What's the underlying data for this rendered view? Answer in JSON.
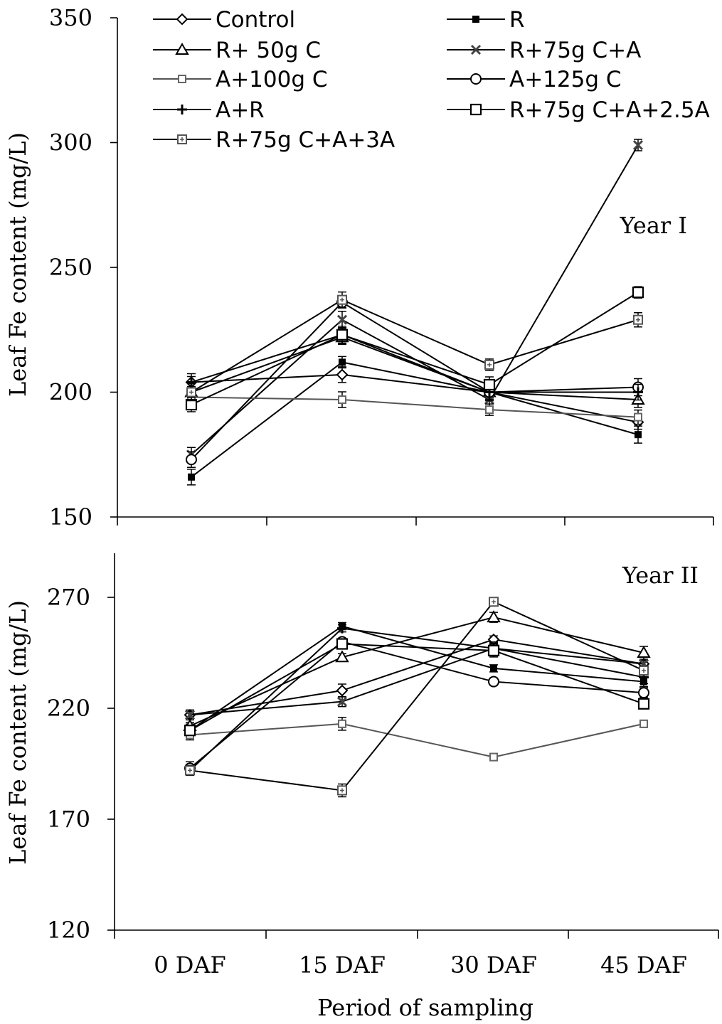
{
  "chart_data": [
    {
      "type": "line",
      "panel_label": "Year I",
      "ylabel": "Leaf Fe content (mg/L)",
      "xlabel": "",
      "categories": [
        "0 DAF",
        "15 DAF",
        "30 DAF",
        "45 DAF"
      ],
      "ylim": [
        150,
        350
      ],
      "yticks": [
        150,
        200,
        250,
        300,
        350
      ],
      "series": [
        {
          "name": "Control",
          "marker": "diamond-open",
          "values": [
            204,
            207,
            200,
            188
          ]
        },
        {
          "name": "R",
          "marker": "square-filled-small",
          "values": [
            166,
            212,
            200,
            183
          ]
        },
        {
          "name": "R+ 50g C",
          "marker": "triangle-open",
          "values": [
            200,
            222,
            200,
            197
          ]
        },
        {
          "name": "R+75g C+A",
          "marker": "x-small",
          "values": [
            175,
            229,
            197,
            299
          ]
        },
        {
          "name": "A+100g C",
          "marker": "square-small-gray",
          "values": [
            198,
            197,
            193,
            190
          ]
        },
        {
          "name": "A+125g C",
          "marker": "circle-open",
          "values": [
            173,
            236,
            200,
            202
          ]
        },
        {
          "name": "A+R",
          "marker": "plus",
          "values": [
            204,
            223,
            200,
            200
          ]
        },
        {
          "name": "R+75g C+A+2.5A",
          "marker": "square-open",
          "values": [
            195,
            223,
            203,
            240
          ]
        },
        {
          "name": "R+75g C+A+3A",
          "marker": "plus-box",
          "values": [
            200,
            237,
            211,
            229
          ]
        }
      ],
      "legend_entries": [
        "Control",
        "R",
        "R+ 50g C",
        "R+75g C+A",
        "A+100g C",
        "A+125g C",
        "A+R",
        "R+75g C+A+2.5A",
        "R+75g C+A+3A"
      ],
      "legend_placement": "top"
    },
    {
      "type": "line",
      "panel_label": "Year II",
      "ylabel": "Leaf Fe content (mg/L)",
      "xlabel": "Period of sampling",
      "categories": [
        "0 DAF",
        "15 DAF",
        "30 DAF",
        "45 DAF"
      ],
      "ylim": [
        120,
        290
      ],
      "yticks": [
        120,
        170,
        220,
        270
      ],
      "series": [
        {
          "name": "Control",
          "marker": "diamond-open",
          "values": [
            217,
            228,
            251,
            240
          ]
        },
        {
          "name": "R",
          "marker": "square-filled-small",
          "values": [
            210,
            257,
            238,
            232
          ]
        },
        {
          "name": "R+ 50g C",
          "marker": "triangle-open",
          "values": [
            212,
            243,
            261,
            245
          ]
        },
        {
          "name": "R+75g C+A",
          "marker": "x-small",
          "values": [
            217,
            223,
            247,
            240
          ]
        },
        {
          "name": "A+100g C",
          "marker": "square-small-gray",
          "values": [
            208,
            213,
            198,
            213
          ]
        },
        {
          "name": "A+125g C",
          "marker": "circle-open",
          "values": [
            193,
            250,
            232,
            227
          ]
        },
        {
          "name": "A+R",
          "marker": "plus",
          "values": [
            192,
            256,
            247,
            234
          ]
        },
        {
          "name": "R+75g C+A+2.5A",
          "marker": "square-open",
          "values": [
            210,
            249,
            246,
            222
          ]
        },
        {
          "name": "R+75g C+A+3A",
          "marker": "plus-box",
          "values": [
            192,
            183,
            268,
            237
          ]
        }
      ]
    }
  ]
}
